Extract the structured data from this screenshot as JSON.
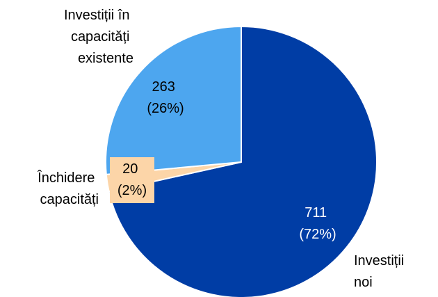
{
  "chart_data": {
    "type": "pie",
    "start_angle_deg": 0,
    "direction": "clockwise",
    "slices": [
      {
        "category": "Investiții noi",
        "value": 711,
        "percent_label": "(72%)",
        "color": "#003da5",
        "label_color": "#ffffff"
      },
      {
        "category": "Închidere capacități",
        "value": 20,
        "percent_label": "(2%)",
        "color": "#fcd5a8",
        "label_color": "#000000",
        "label_background": "#fcd5a8"
      },
      {
        "category": "Investiții în capacități existente",
        "value": 263,
        "percent_label": "(26%)",
        "color": "#4da6ef",
        "label_color": "#000000"
      }
    ],
    "slice_border_color": "#ffffff"
  }
}
